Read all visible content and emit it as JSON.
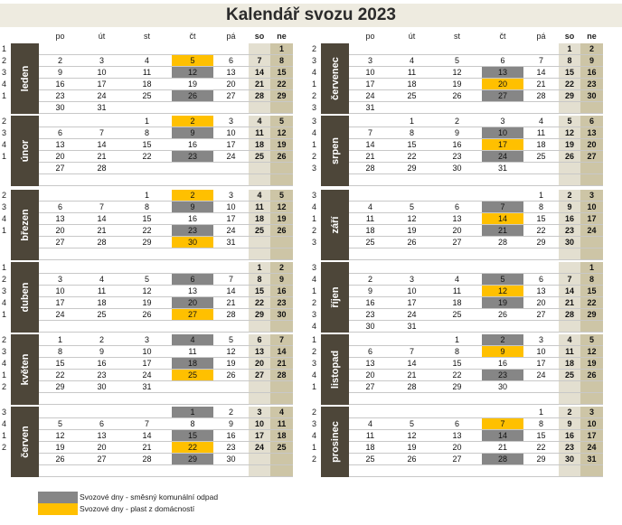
{
  "title": "Kalendář svozu 2023",
  "colors": {
    "komunalni": "#868686",
    "plast": "#ffc000",
    "saturday": "#e3dfd0",
    "sunday": "#cdc5a6",
    "label": "#4d4639"
  },
  "headers": [
    "po",
    "út",
    "st",
    "čt",
    "pá",
    "so",
    "ne"
  ],
  "legend": [
    {
      "text": "Svozové dny - směsný komunální odpad",
      "color": "#868686"
    },
    {
      "text": "Svozové dny - plast z domácností",
      "color": "#ffc000"
    }
  ],
  "months": [
    {
      "name": "leden",
      "weeks": [
        "1",
        "2",
        "3",
        "4",
        "1",
        ""
      ],
      "rows": [
        [
          "",
          "",
          "",
          "",
          "",
          "",
          "1"
        ],
        [
          "2",
          "3",
          "4",
          "5",
          "6",
          "7",
          "8"
        ],
        [
          "9",
          "10",
          "11",
          "12",
          "13",
          "14",
          "15"
        ],
        [
          "16",
          "17",
          "18",
          "19",
          "20",
          "21",
          "22"
        ],
        [
          "23",
          "24",
          "25",
          "26",
          "27",
          "28",
          "29"
        ],
        [
          "30",
          "31",
          "",
          "",
          "",
          "",
          ""
        ]
      ],
      "hl": {
        "1-3": "y",
        "2-3": "g",
        "4-3": "g"
      }
    },
    {
      "name": "únor",
      "weeks": [
        "2",
        "3",
        "4",
        "1",
        "",
        ""
      ],
      "rows": [
        [
          "",
          "",
          "1",
          "2",
          "3",
          "4",
          "5"
        ],
        [
          "6",
          "7",
          "8",
          "9",
          "10",
          "11",
          "12"
        ],
        [
          "13",
          "14",
          "15",
          "16",
          "17",
          "18",
          "19"
        ],
        [
          "20",
          "21",
          "22",
          "23",
          "24",
          "25",
          "26"
        ],
        [
          "27",
          "28",
          "",
          "",
          "",
          "",
          ""
        ],
        [
          "",
          "",
          "",
          "",
          "",
          "",
          ""
        ]
      ],
      "hl": {
        "0-3": "y",
        "1-3": "g",
        "3-3": "g"
      }
    },
    {
      "name": "březen",
      "weeks": [
        "2",
        "3",
        "4",
        "1",
        "",
        ""
      ],
      "rows": [
        [
          "",
          "",
          "1",
          "2",
          "3",
          "4",
          "5"
        ],
        [
          "6",
          "7",
          "8",
          "9",
          "10",
          "11",
          "12"
        ],
        [
          "13",
          "14",
          "15",
          "16",
          "17",
          "18",
          "19"
        ],
        [
          "20",
          "21",
          "22",
          "23",
          "24",
          "25",
          "26"
        ],
        [
          "27",
          "28",
          "29",
          "30",
          "31",
          "",
          ""
        ],
        [
          "",
          "",
          "",
          "",
          "",
          "",
          ""
        ]
      ],
      "hl": {
        "0-3": "y",
        "1-3": "g",
        "3-3": "g",
        "4-3": "y"
      }
    },
    {
      "name": "duben",
      "weeks": [
        "1",
        "2",
        "3",
        "4",
        "1",
        ""
      ],
      "rows": [
        [
          "",
          "",
          "",
          "",
          "",
          "1",
          "2"
        ],
        [
          "3",
          "4",
          "5",
          "6",
          "7",
          "8",
          "9"
        ],
        [
          "10",
          "11",
          "12",
          "13",
          "14",
          "15",
          "16"
        ],
        [
          "17",
          "18",
          "19",
          "20",
          "21",
          "22",
          "23"
        ],
        [
          "24",
          "25",
          "26",
          "27",
          "28",
          "29",
          "30"
        ],
        [
          "",
          "",
          "",
          "",
          "",
          "",
          ""
        ]
      ],
      "hl": {
        "1-3": "g",
        "3-3": "g",
        "4-3": "y"
      }
    },
    {
      "name": "květen",
      "weeks": [
        "2",
        "3",
        "4",
        "1",
        "2",
        ""
      ],
      "rows": [
        [
          "1",
          "2",
          "3",
          "4",
          "5",
          "6",
          "7"
        ],
        [
          "8",
          "9",
          "10",
          "11",
          "12",
          "13",
          "14"
        ],
        [
          "15",
          "16",
          "17",
          "18",
          "19",
          "20",
          "21"
        ],
        [
          "22",
          "23",
          "24",
          "25",
          "26",
          "27",
          "28"
        ],
        [
          "29",
          "30",
          "31",
          "",
          "",
          "",
          ""
        ],
        [
          "",
          "",
          "",
          "",
          "",
          "",
          ""
        ]
      ],
      "hl": {
        "0-3": "g",
        "2-3": "g",
        "3-3": "y"
      }
    },
    {
      "name": "červen",
      "weeks": [
        "3",
        "4",
        "1",
        "2",
        "",
        ""
      ],
      "rows": [
        [
          "",
          "",
          "",
          "1",
          "2",
          "3",
          "4"
        ],
        [
          "5",
          "6",
          "7",
          "8",
          "9",
          "10",
          "11"
        ],
        [
          "12",
          "13",
          "14",
          "15",
          "16",
          "17",
          "18"
        ],
        [
          "19",
          "20",
          "21",
          "22",
          "23",
          "24",
          "25"
        ],
        [
          "26",
          "27",
          "28",
          "29",
          "30",
          "",
          ""
        ],
        [
          "",
          "",
          "",
          "",
          "",
          "",
          ""
        ]
      ],
      "hl": {
        "0-3": "g",
        "2-3": "g",
        "3-3": "y",
        "4-3": "g"
      }
    },
    {
      "name": "červenec",
      "weeks": [
        "2",
        "3",
        "4",
        "1",
        "2",
        "3"
      ],
      "rows": [
        [
          "",
          "",
          "",
          "",
          "",
          "1",
          "2"
        ],
        [
          "3",
          "4",
          "5",
          "6",
          "7",
          "8",
          "9"
        ],
        [
          "10",
          "11",
          "12",
          "13",
          "14",
          "15",
          "16"
        ],
        [
          "17",
          "18",
          "19",
          "20",
          "21",
          "22",
          "23"
        ],
        [
          "24",
          "25",
          "26",
          "27",
          "28",
          "29",
          "30"
        ],
        [
          "31",
          "",
          "",
          "",
          "",
          "",
          ""
        ]
      ],
      "hl": {
        "2-3": "g",
        "3-3": "y",
        "4-3": "g"
      }
    },
    {
      "name": "srpen",
      "weeks": [
        "3",
        "4",
        "1",
        "2",
        "3",
        ""
      ],
      "rows": [
        [
          "",
          "1",
          "2",
          "3",
          "4",
          "5",
          "6"
        ],
        [
          "7",
          "8",
          "9",
          "10",
          "11",
          "12",
          "13"
        ],
        [
          "14",
          "15",
          "16",
          "17",
          "18",
          "19",
          "20"
        ],
        [
          "21",
          "22",
          "23",
          "24",
          "25",
          "26",
          "27"
        ],
        [
          "28",
          "29",
          "30",
          "31",
          "",
          "",
          ""
        ],
        [
          "",
          "",
          "",
          "",
          "",
          "",
          ""
        ]
      ],
      "hl": {
        "1-3": "g",
        "2-3": "y",
        "3-3": "g"
      }
    },
    {
      "name": "září",
      "weeks": [
        "3",
        "4",
        "1",
        "2",
        "3",
        ""
      ],
      "rows": [
        [
          "",
          "",
          "",
          "",
          "1",
          "2",
          "3"
        ],
        [
          "4",
          "5",
          "6",
          "7",
          "8",
          "9",
          "10"
        ],
        [
          "11",
          "12",
          "13",
          "14",
          "15",
          "16",
          "17"
        ],
        [
          "18",
          "19",
          "20",
          "21",
          "22",
          "23",
          "24"
        ],
        [
          "25",
          "26",
          "27",
          "28",
          "29",
          "30",
          ""
        ],
        [
          "",
          "",
          "",
          "",
          "",
          "",
          ""
        ]
      ],
      "hl": {
        "1-3": "g",
        "2-3": "y",
        "3-3": "g"
      }
    },
    {
      "name": "říjen",
      "weeks": [
        "3",
        "4",
        "1",
        "2",
        "3",
        "4"
      ],
      "rows": [
        [
          "",
          "",
          "",
          "",
          "",
          "",
          "1"
        ],
        [
          "2",
          "3",
          "4",
          "5",
          "6",
          "7",
          "8"
        ],
        [
          "9",
          "10",
          "11",
          "12",
          "13",
          "14",
          "15"
        ],
        [
          "16",
          "17",
          "18",
          "19",
          "20",
          "21",
          "22"
        ],
        [
          "23",
          "24",
          "25",
          "26",
          "27",
          "28",
          "29"
        ],
        [
          "30",
          "31",
          "",
          "",
          "",
          "",
          ""
        ]
      ],
      "hl": {
        "1-3": "g",
        "2-3": "y",
        "3-3": "g"
      }
    },
    {
      "name": "listopad",
      "weeks": [
        "1",
        "2",
        "3",
        "4",
        "1",
        ""
      ],
      "rows": [
        [
          "",
          "",
          "1",
          "2",
          "3",
          "4",
          "5"
        ],
        [
          "6",
          "7",
          "8",
          "9",
          "10",
          "11",
          "12"
        ],
        [
          "13",
          "14",
          "15",
          "16",
          "17",
          "18",
          "19"
        ],
        [
          "20",
          "21",
          "22",
          "23",
          "24",
          "25",
          "26"
        ],
        [
          "27",
          "28",
          "29",
          "30",
          "",
          "",
          ""
        ],
        [
          "",
          "",
          "",
          "",
          "",
          "",
          ""
        ]
      ],
      "hl": {
        "0-3": "g",
        "1-3": "y",
        "3-3": "g"
      }
    },
    {
      "name": "prosinec",
      "weeks": [
        "2",
        "3",
        "4",
        "1",
        "2",
        ""
      ],
      "rows": [
        [
          "",
          "",
          "",
          "",
          "1",
          "2",
          "3"
        ],
        [
          "4",
          "5",
          "6",
          "7",
          "8",
          "9",
          "10"
        ],
        [
          "11",
          "12",
          "13",
          "14",
          "15",
          "16",
          "17"
        ],
        [
          "18",
          "19",
          "20",
          "21",
          "22",
          "23",
          "24"
        ],
        [
          "25",
          "26",
          "27",
          "28",
          "29",
          "30",
          "31"
        ],
        [
          "",
          "",
          "",
          "",
          "",
          "",
          ""
        ]
      ],
      "hl": {
        "1-3": "y",
        "2-3": "g",
        "4-3": "g"
      }
    }
  ]
}
